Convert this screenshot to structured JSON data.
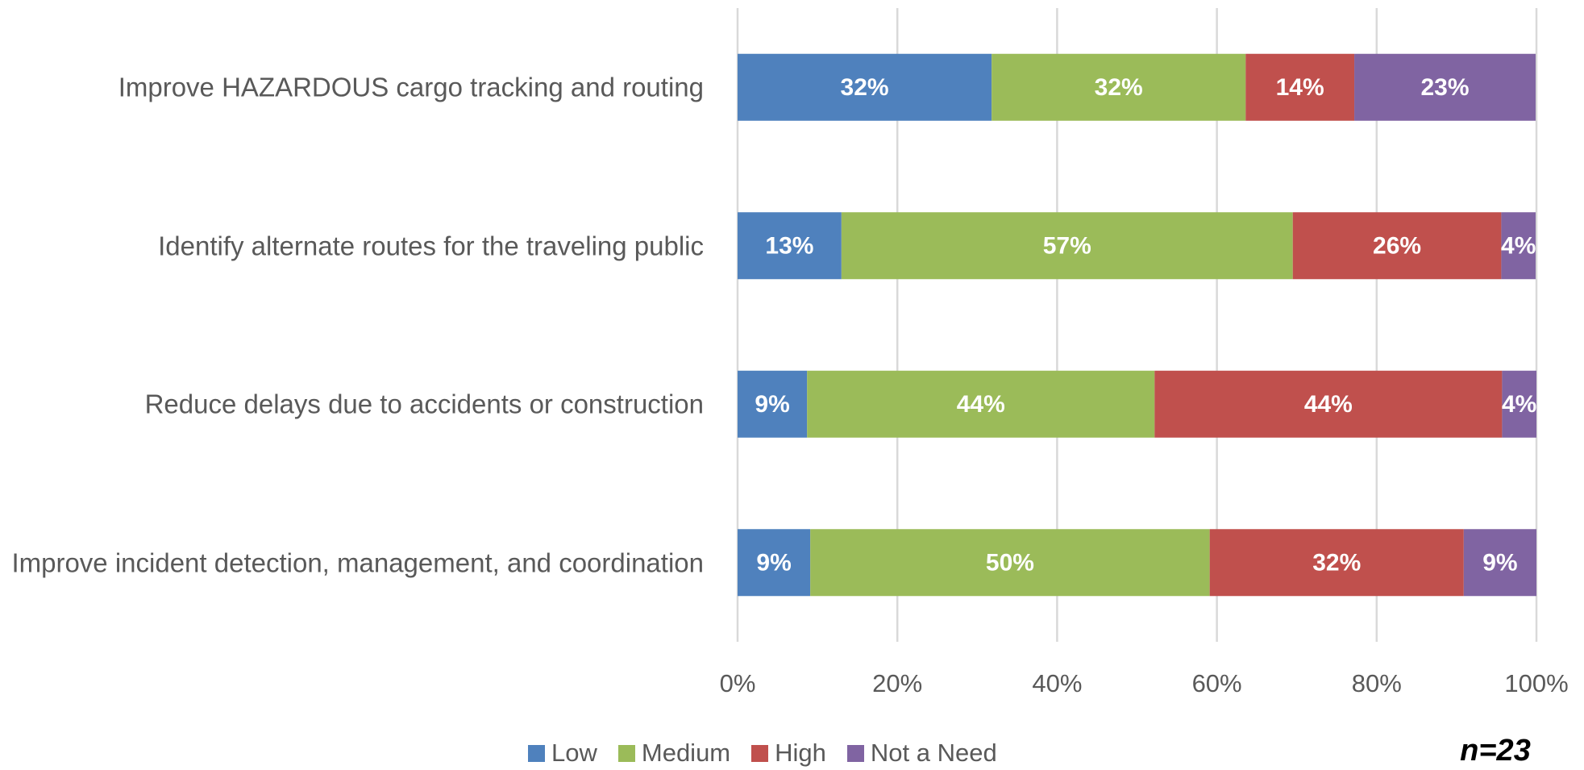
{
  "chart_data": {
    "type": "stacked_barh",
    "categories": [
      "Improve HAZARDOUS cargo tracking and routing",
      "Identify alternate routes for the traveling public",
      "Reduce delays due to accidents or construction",
      "Improve incident detection, management, and coordination"
    ],
    "series": [
      {
        "name": "Low",
        "color": "#4f81bd",
        "values": [
          31.8,
          13.0,
          8.7,
          9.1
        ],
        "value_labels": [
          "32%",
          "13%",
          "9%",
          "9%"
        ]
      },
      {
        "name": "Medium",
        "color": "#9bbb59",
        "values": [
          31.8,
          56.5,
          43.5,
          50.0
        ],
        "value_labels": [
          "32%",
          "57%",
          "44%",
          "50%"
        ]
      },
      {
        "name": "High",
        "color": "#c0504d",
        "values": [
          13.6,
          26.1,
          43.5,
          31.8
        ],
        "value_labels": [
          "14%",
          "26%",
          "44%",
          "32%"
        ]
      },
      {
        "name": "Not a Need",
        "color": "#8064a2",
        "values": [
          22.7,
          4.3,
          4.3,
          9.1
        ],
        "value_labels": [
          "23%",
          "4%",
          "4%",
          "9%"
        ]
      }
    ],
    "xlim": [
      0,
      100
    ],
    "xticks": [
      {
        "value": 0,
        "label": "0%"
      },
      {
        "value": 20,
        "label": "20%"
      },
      {
        "value": 40,
        "label": "40%"
      },
      {
        "value": 60,
        "label": "60%"
      },
      {
        "value": 80,
        "label": "80%"
      },
      {
        "value": 100,
        "label": "100%"
      }
    ],
    "grid": true,
    "legend": "bottom",
    "annotation": "n=23"
  }
}
